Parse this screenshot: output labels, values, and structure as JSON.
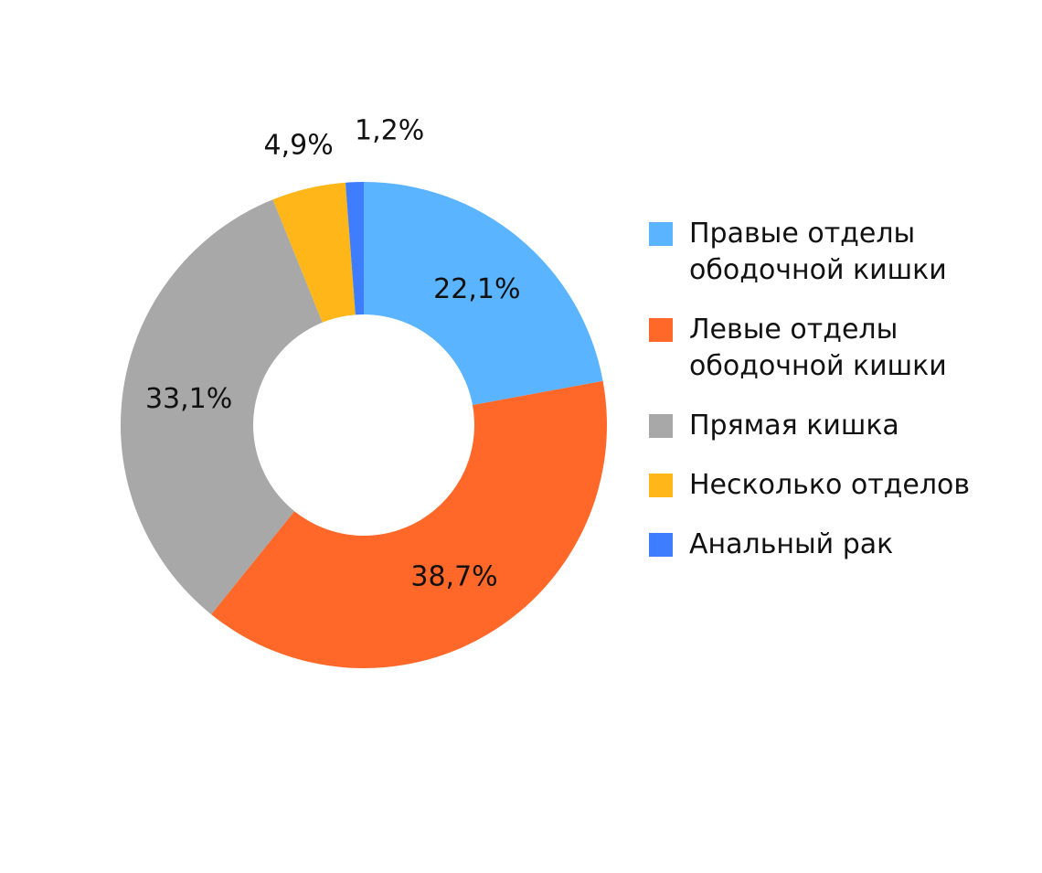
{
  "chart_data": {
    "type": "pie",
    "donut": true,
    "title": "",
    "start_angle_deg": 0,
    "direction": "clockwise",
    "slices": [
      {
        "label": "Правые отделы ободочной кишки",
        "value": 22.1,
        "value_label": "22,1%",
        "color": "#5AB4FF"
      },
      {
        "label": "Левые отделы ободочной кишки",
        "value": 38.7,
        "value_label": "38,7%",
        "color": "#FF6828"
      },
      {
        "label": "Прямая кишка",
        "value": 33.1,
        "value_label": "33,1%",
        "color": "#A8A8A8"
      },
      {
        "label": "Несколько отделов",
        "value": 4.9,
        "value_label": "4,9%",
        "color": "#FFB618"
      },
      {
        "label": "Анальный рак",
        "value": 1.2,
        "value_label": "1,2%",
        "color": "#3F7DFF"
      }
    ],
    "legend": {
      "placement": "right",
      "items": [
        {
          "lines": [
            "Правые отделы",
            "ободочной кишки"
          ],
          "color": "#5AB4FF"
        },
        {
          "lines": [
            "Левые отделы",
            "ободочной кишки"
          ],
          "color": "#FF6828"
        },
        {
          "lines": [
            "Прямая кишка"
          ],
          "color": "#A8A8A8"
        },
        {
          "lines": [
            "Несколько отделов"
          ],
          "color": "#FFB618"
        },
        {
          "lines": [
            "Анальный рак"
          ],
          "color": "#3F7DFF"
        }
      ]
    }
  }
}
